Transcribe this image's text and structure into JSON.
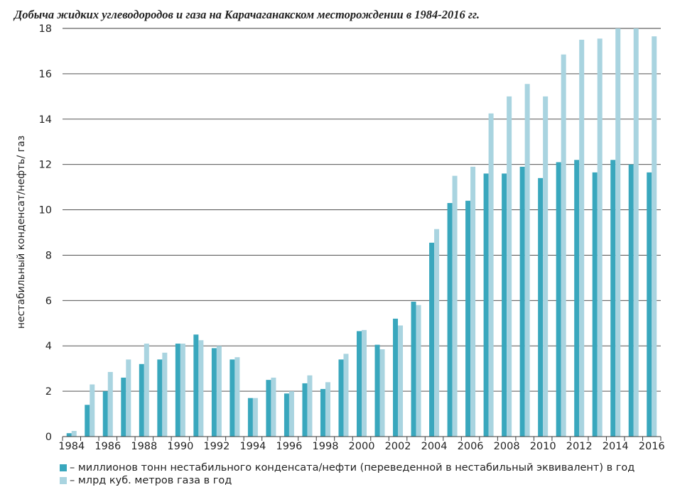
{
  "colors": {
    "series1": "#39a7bd",
    "series2": "#a9d4e0",
    "grid": "#3a3a3a"
  },
  "chart_data": {
    "type": "bar",
    "title": "Добыча жидких углеводородов и газа на Карачаганакском месторождении в 1984-2016 гг.",
    "xlabel": "",
    "ylabel": "нестабильный конденсат/нефть/ газ",
    "ylim": [
      0,
      18
    ],
    "yticks": [
      "0",
      "2",
      "4",
      "6",
      "8",
      "10",
      "12",
      "14",
      "16",
      "18"
    ],
    "categories": [
      "1984",
      "1985",
      "1986",
      "1987",
      "1988",
      "1989",
      "1990",
      "1991",
      "1992",
      "1993",
      "1994",
      "1995",
      "1996",
      "1997",
      "1998",
      "1999",
      "2000",
      "2001",
      "2002",
      "2003",
      "2004",
      "2005",
      "2006",
      "2007",
      "2008",
      "2009",
      "2010",
      "2011",
      "2012",
      "2013",
      "2014",
      "2015",
      "2016"
    ],
    "xticks": [
      "1984",
      "1986",
      "1988",
      "1990",
      "1992",
      "1994",
      "1996",
      "1998",
      "2000",
      "2002",
      "2004",
      "2006",
      "2008",
      "2010",
      "2012",
      "2014",
      "2016"
    ],
    "grid": "horizontal",
    "legend_position": "bottom-left",
    "series": [
      {
        "name": "– миллионов тонн нестабильного конденсата/нефти (переведенной в нестабильный эквивалент) в год",
        "values": [
          0.15,
          1.4,
          2.0,
          2.6,
          3.2,
          3.4,
          4.1,
          4.5,
          3.9,
          3.4,
          1.7,
          2.5,
          1.9,
          2.35,
          2.1,
          3.4,
          4.65,
          4.05,
          5.2,
          5.95,
          8.55,
          10.3,
          10.4,
          11.6,
          11.6,
          11.9,
          11.4,
          12.1,
          12.2,
          11.65,
          12.2,
          12.0,
          11.65
        ]
      },
      {
        "name": "– млрд куб. метров газа в год",
        "values": [
          0.25,
          2.3,
          2.85,
          3.4,
          4.1,
          3.7,
          4.1,
          4.25,
          4.0,
          3.5,
          1.7,
          2.6,
          2.0,
          2.7,
          2.4,
          3.65,
          4.7,
          3.85,
          4.9,
          5.8,
          9.15,
          11.5,
          11.9,
          14.25,
          15.0,
          15.55,
          15.0,
          16.85,
          17.5,
          17.55,
          18.2,
          18.2,
          17.65
        ]
      }
    ]
  }
}
